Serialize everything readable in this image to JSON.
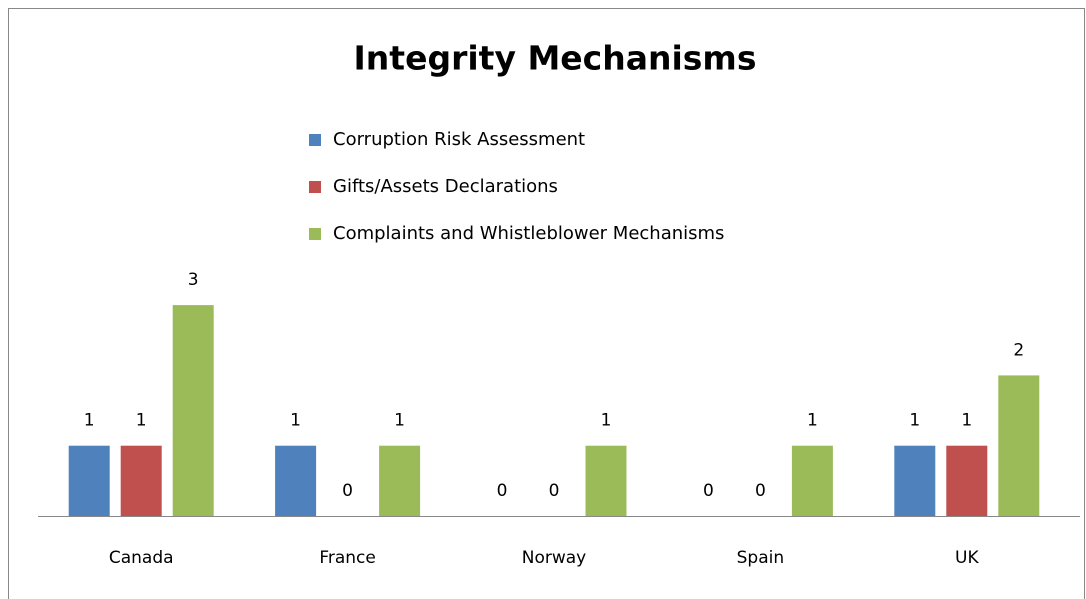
{
  "chart_data": {
    "type": "bar",
    "title": "Integrity Mechanisms",
    "categories": [
      "Canada",
      "France",
      "Norway",
      "Spain",
      "UK"
    ],
    "series": [
      {
        "name": "Corruption Risk Assessment",
        "color": "#4f81bd",
        "values": [
          1,
          1,
          0,
          0,
          1
        ]
      },
      {
        "name": "Gifts/Assets Declarations",
        "color": "#c0504d",
        "values": [
          1,
          0,
          0,
          0,
          1
        ]
      },
      {
        "name": "Complaints and Whistleblower Mechanisms",
        "color": "#9bbb59",
        "values": [
          3,
          1,
          1,
          1,
          2
        ]
      }
    ]
  }
}
